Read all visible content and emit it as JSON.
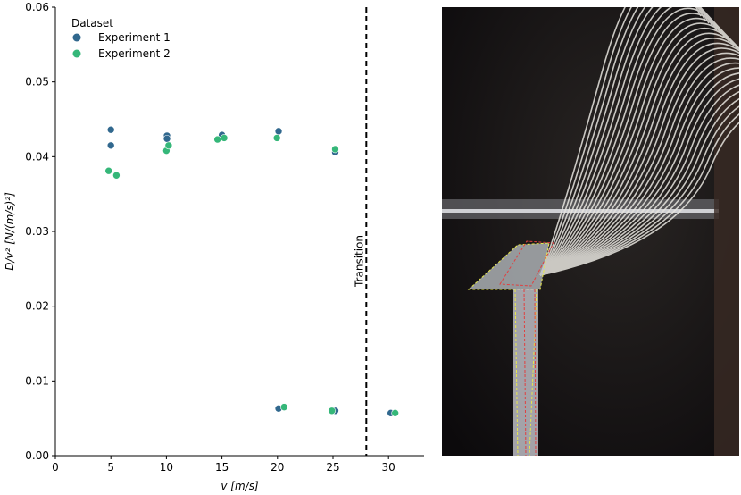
{
  "chart_data": {
    "type": "scatter",
    "xlabel": "v [m/s]",
    "ylabel": "D/v² [N/(m/s)²]",
    "xlim": [
      0,
      33.2
    ],
    "ylim": [
      0,
      0.06
    ],
    "xticks": [
      0,
      5,
      10,
      15,
      20,
      25,
      30
    ],
    "yticks": [
      0.0,
      0.01,
      0.02,
      0.03,
      0.04,
      0.05,
      0.06
    ],
    "grid": false,
    "legend": {
      "title": "Dataset",
      "placement": "top-left"
    },
    "series": [
      {
        "name": "Experiment 1",
        "color": "#31688e",
        "points": [
          [
            5.0,
            0.0436
          ],
          [
            5.0,
            0.0415
          ],
          [
            10.05,
            0.0428
          ],
          [
            10.05,
            0.0424
          ],
          [
            15.0,
            0.0429
          ],
          [
            20.1,
            0.0434
          ],
          [
            25.2,
            0.0406
          ],
          [
            20.1,
            0.0063
          ],
          [
            25.2,
            0.006
          ],
          [
            30.2,
            0.0057
          ]
        ]
      },
      {
        "name": "Experiment 2",
        "color": "#35b779",
        "points": [
          [
            4.8,
            0.0381
          ],
          [
            5.5,
            0.0375
          ],
          [
            10.0,
            0.0408
          ],
          [
            10.2,
            0.0415
          ],
          [
            14.6,
            0.0423
          ],
          [
            15.2,
            0.0425
          ],
          [
            19.95,
            0.0425
          ],
          [
            25.2,
            0.041
          ],
          [
            20.6,
            0.0065
          ],
          [
            24.9,
            0.006
          ],
          [
            30.6,
            0.0057
          ]
        ]
      }
    ],
    "annotations": [
      {
        "type": "vline",
        "x": 28,
        "style": "dashed",
        "color": "#000000",
        "label": "Transition"
      }
    ]
  }
}
